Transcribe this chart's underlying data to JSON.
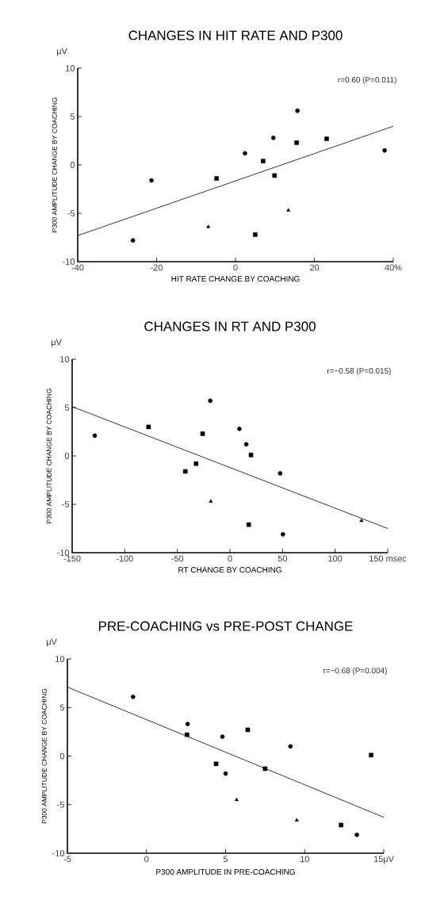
{
  "chart_data": [
    {
      "type": "scatter",
      "title": "CHANGES IN HIT RATE AND P300",
      "xlabel": "HIT RATE CHANGE BY COACHING",
      "ylabel": "P300 AMPLITUDE CHANGE BY COACHING",
      "xlim": [
        -40,
        40
      ],
      "ylim": [
        -10,
        10
      ],
      "xticks": [
        -40,
        -20,
        0,
        20,
        {
          "value": 40,
          "label": "40%"
        }
      ],
      "yticks": [
        -10,
        -5,
        0,
        5,
        10
      ],
      "annotations": [
        "r=0.60 (P=0.011)",
        "μV"
      ],
      "series": [
        {
          "color": "#000000",
          "marker": "circle",
          "x": [
            -26,
            -21.3,
            2.4,
            9.6,
            15.7,
            37.8
          ],
          "values": [
            -7.8,
            -1.6,
            1.2,
            2.8,
            5.6,
            1.5
          ]
        },
        {
          "color": "#000000",
          "marker": "square",
          "x": [
            -4.8,
            7,
            9.9,
            15.5,
            23.1,
            5
          ],
          "values": [
            -1.4,
            0.4,
            -1.1,
            2.3,
            2.7,
            -7.2
          ]
        },
        {
          "color": "#000000",
          "marker": "triangle",
          "x": [
            -6.9,
            13.4
          ],
          "values": [
            -6.4,
            -4.7
          ]
        },
        {
          "type": "line",
          "color": "#000000",
          "marker": "none",
          "x": [
            -40,
            40
          ],
          "values": [
            -7.3,
            4.0
          ]
        }
      ]
    },
    {
      "type": "scatter",
      "title": "CHANGES IN RT AND P300",
      "xlabel": "RT CHANGE BY COACHING",
      "ylabel": "P300 AMPLITUDE CHANGE BY COACHING",
      "xlim": [
        -150,
        150
      ],
      "ylim": [
        -10,
        10
      ],
      "xticks": [
        -150,
        -100,
        -50,
        0,
        50,
        100,
        {
          "value": 150,
          "label": "150 msec"
        }
      ],
      "yticks": [
        -10,
        -5,
        0,
        5,
        10
      ],
      "annotations": [
        "r=−0.58 (P=0.015)",
        "μV"
      ],
      "series": [
        {
          "color": "#000000",
          "marker": "circle",
          "x": [
            -128.5,
            -18.7,
            9,
            15.5,
            47.7,
            50.4
          ],
          "values": [
            2.1,
            5.7,
            2.8,
            1.2,
            -1.8,
            -8.1
          ]
        },
        {
          "color": "#000000",
          "marker": "square",
          "x": [
            -77.4,
            -26,
            -42.4,
            -32.2,
            20,
            17.9
          ],
          "values": [
            3.0,
            2.3,
            -1.6,
            -0.8,
            0.1,
            -7.1
          ]
        },
        {
          "color": "#000000",
          "marker": "triangle",
          "x": [
            -18.2,
            125
          ],
          "values": [
            -4.7,
            -6.7
          ]
        },
        {
          "type": "line",
          "color": "#000000",
          "marker": "none",
          "x": [
            -150,
            150
          ],
          "values": [
            5.1,
            -7.5
          ]
        }
      ]
    },
    {
      "type": "scatter",
      "title": "PRE-COACHING vs PRE-POST CHANGE",
      "xlabel": "P300 AMPLITUDE IN PRE-COACHING",
      "ylabel": "P300 AMPLITUDE CHANGE BY COACHING",
      "xlim": [
        -5,
        15
      ],
      "ylim": [
        -10,
        10
      ],
      "xticks": [
        -5,
        0,
        5,
        10,
        {
          "value": 15,
          "label": "15μV"
        }
      ],
      "yticks": [
        -10,
        -5,
        0,
        5,
        10
      ],
      "annotations": [
        "r=−0.68 (P=0.004)",
        "μV"
      ],
      "series": [
        {
          "color": "#000000",
          "marker": "circle",
          "x": [
            -0.85,
            2.6,
            4.8,
            9.1,
            5.0,
            13.3
          ],
          "values": [
            6.1,
            3.3,
            2.0,
            1.0,
            -1.8,
            -8.1
          ]
        },
        {
          "color": "#000000",
          "marker": "square",
          "x": [
            2.56,
            6.4,
            4.4,
            7.5,
            14.2,
            12.3
          ],
          "values": [
            2.2,
            2.7,
            -0.8,
            -1.3,
            0.1,
            -7.1
          ]
        },
        {
          "color": "#000000",
          "marker": "triangle",
          "x": [
            5.7,
            9.5
          ],
          "values": [
            -4.5,
            -6.6
          ]
        },
        {
          "type": "line",
          "color": "#000000",
          "marker": "none",
          "x": [
            -5,
            15
          ],
          "values": [
            7.1,
            -6.3
          ]
        }
      ]
    }
  ]
}
